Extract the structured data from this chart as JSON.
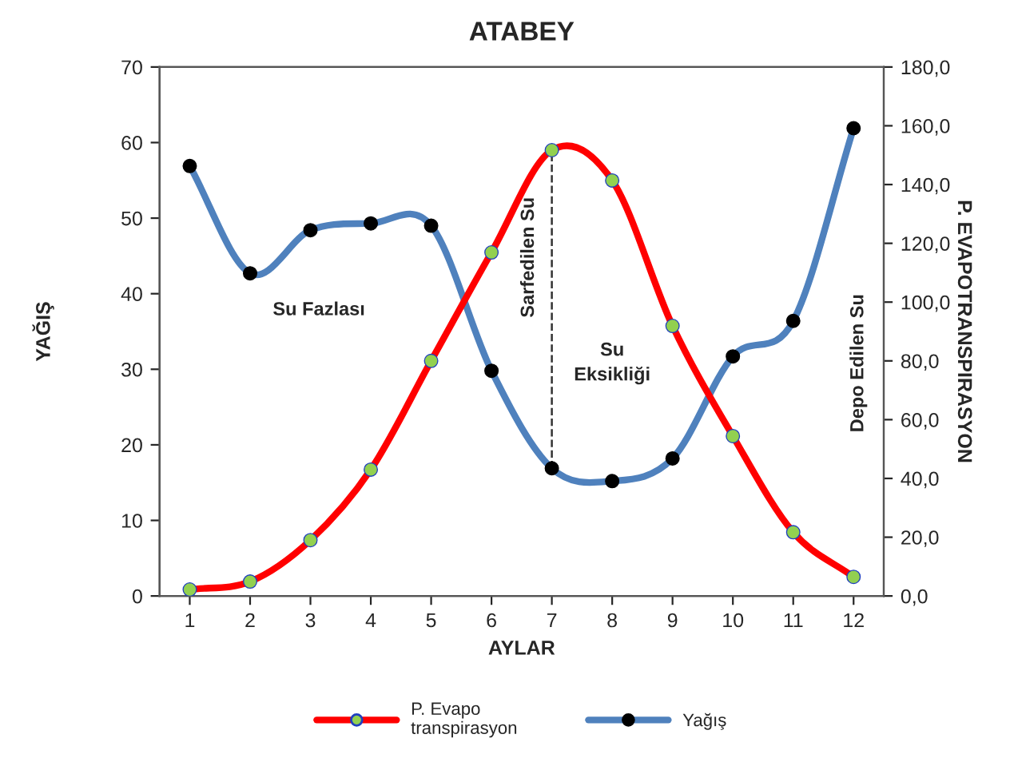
{
  "chart_data": {
    "type": "line",
    "title": "ATABEY",
    "xlabel": "AYLAR",
    "ylabel": "YAĞIŞ",
    "y2label": "P. EVAPOTRANSPIRASYON",
    "x": [
      1,
      2,
      3,
      4,
      5,
      6,
      7,
      8,
      9,
      10,
      11,
      12
    ],
    "xlim": [
      0.5,
      12.5
    ],
    "xticks": [
      1,
      2,
      3,
      4,
      5,
      6,
      7,
      8,
      9,
      10,
      11,
      12
    ],
    "series": [
      {
        "name": "P. Evapo\ntranspirasyon",
        "color": "#ff0000",
        "axis": "y2",
        "values": [
          2.2,
          4.9,
          19.0,
          43.0,
          80.0,
          116.9,
          151.7,
          141.4,
          91.9,
          54.4,
          21.7,
          6.5
        ]
      },
      {
        "name": "Yağış",
        "color": "#4f81bd",
        "values": [
          56.9,
          42.7,
          48.4,
          49.3,
          49.0,
          29.8,
          16.9,
          15.2,
          18.2,
          31.7,
          36.4,
          61.9
        ]
      }
    ],
    "ylim": [
      0,
      70
    ],
    "yticks": [
      0,
      10,
      20,
      30,
      40,
      50,
      60,
      70
    ],
    "y2lim": [
      0,
      180
    ],
    "y2ticks": [
      {
        "value": 0,
        "label": "0,0"
      },
      {
        "value": 20,
        "label": "20,0"
      },
      {
        "value": 40,
        "label": "40,0"
      },
      {
        "value": 60,
        "label": "60,0"
      },
      {
        "value": 80,
        "label": "80,0"
      },
      {
        "value": 100,
        "label": "100,0"
      },
      {
        "value": 120,
        "label": "120,0"
      },
      {
        "value": 140,
        "label": "140,0"
      },
      {
        "value": 160,
        "label": "160,0"
      },
      {
        "value": 180,
        "label": "180,0"
      }
    ],
    "ref_lines": [
      {
        "axis": "x",
        "value": 7,
        "color": "#333333",
        "line_style": "dashed"
      }
    ],
    "annotations": [
      "Su Fazlası",
      "Sarfedilen Su",
      "Su\nEksikliği",
      "Depo Edilen Su"
    ],
    "marker": "circle",
    "line_style": "solid",
    "grid": false,
    "legend": "bottom"
  }
}
